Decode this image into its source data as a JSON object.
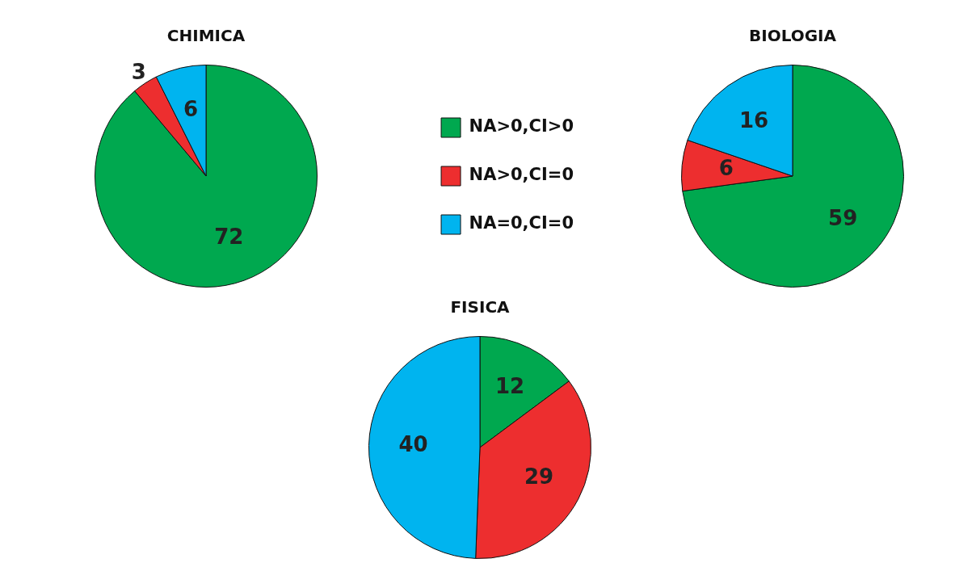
{
  "chart_data": [
    {
      "type": "pie",
      "title": "CHIMICA",
      "categories": [
        "NA>0,CI>0",
        "NA>0,CI=0",
        "NA=0,CI=0"
      ],
      "values": [
        72,
        3,
        6
      ],
      "colors": [
        "#00a84f",
        "#ed2e2f",
        "#00b4ef"
      ],
      "data_labels": true,
      "legend": "right"
    },
    {
      "type": "pie",
      "title": "BIOLOGIA",
      "categories": [
        null,
        null,
        null
      ],
      "values": [
        59,
        6,
        16
      ],
      "colors": [
        "#00a84f",
        "#ed2e2f",
        "#00b4ef"
      ],
      "data_labels": true
    },
    {
      "type": "pie",
      "title": "FISICA",
      "categories": [
        null,
        null,
        null
      ],
      "values": [
        12,
        29,
        40
      ],
      "colors": [
        "#00a84f",
        "#ed2e2f",
        "#00b4ef"
      ],
      "data_labels": true
    }
  ]
}
